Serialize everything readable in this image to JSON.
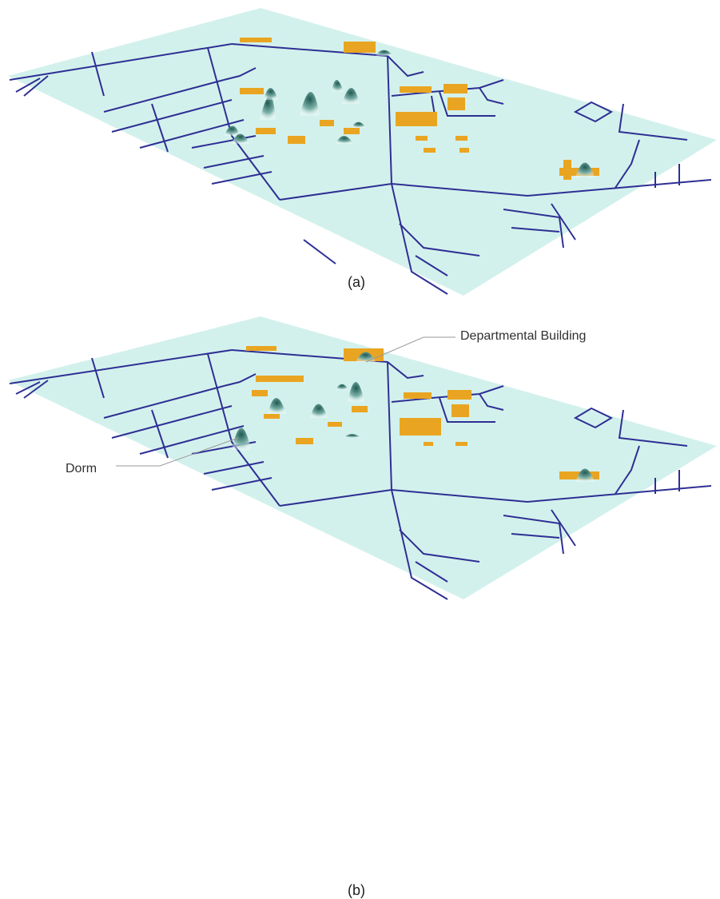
{
  "panels": [
    {
      "id": "a",
      "caption": "(a)"
    },
    {
      "id": "b",
      "caption": "(b)"
    }
  ],
  "annotations": {
    "departmental": "Departmental Building",
    "dorm": "Dorm"
  },
  "colors": {
    "ground": "#d3f1ec",
    "roads": "#2e2f94",
    "buildings": "#e9a521",
    "peak_dark": "#1f5a52",
    "peak_light": "#ffffff",
    "leader_line": "#9a9a9a"
  }
}
